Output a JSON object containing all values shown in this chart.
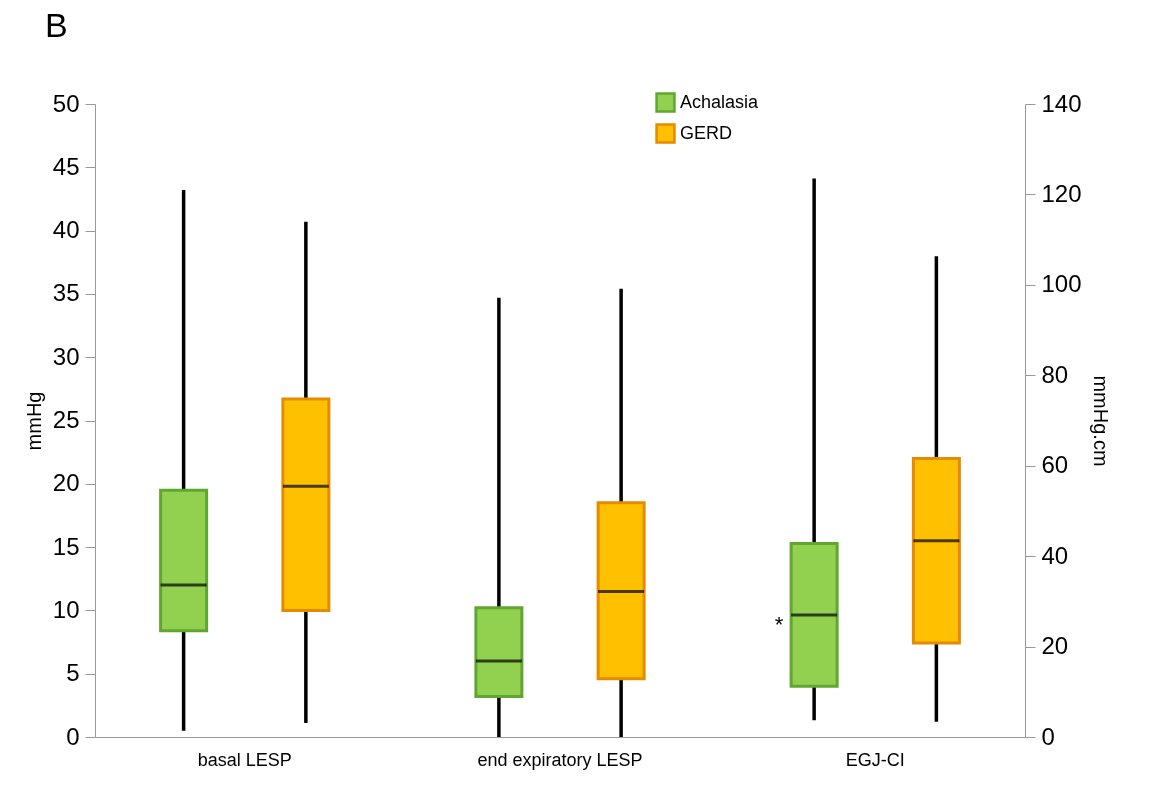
{
  "chart_data": {
    "type": "box",
    "title": "B",
    "ylabel": "mmHg",
    "y2label": "mmHg.cm",
    "categories": [
      "basal LESP",
      "end expiratory LESP",
      "EGJ-CI"
    ],
    "ylim": [
      0,
      50
    ],
    "yticks": [
      0,
      5,
      10,
      15,
      20,
      25,
      30,
      35,
      40,
      45,
      50
    ],
    "y2lim": [
      0,
      140
    ],
    "y2ticks": [
      0,
      20,
      40,
      60,
      80,
      100,
      120,
      140
    ],
    "legend": "top",
    "grid": false,
    "annotations": [
      "*"
    ],
    "series": [
      {
        "name": "Achalasia",
        "color": "#92d050",
        "boxes": [
          {
            "low": 0.5,
            "q1": 8.4,
            "median": 12,
            "q3": 19.5,
            "high": 43.2
          },
          {
            "low": 0,
            "q1": 3.2,
            "median": 6,
            "q3": 10.2,
            "high": 34.7
          },
          null
        ]
      },
      {
        "name": "GERD",
        "color": "#ffc000",
        "boxes": [
          {
            "low": 1.1,
            "q1": 10,
            "median": 19.8,
            "q3": 26.7,
            "high": 40.7
          },
          {
            "low": 0,
            "q1": 4.6,
            "median": 11.5,
            "q3": 18.5,
            "high": 35.4
          },
          null
        ]
      },
      {
        "color": "#92d050",
        "axis": "y2",
        "boxes": [
          null,
          null,
          {
            "low": 3.7,
            "q1": 11.2,
            "median": 27,
            "q3": 42.8,
            "high": 123.5
          }
        ]
      },
      {
        "color": "#ffc000",
        "axis": "y2",
        "boxes": [
          null,
          null,
          {
            "low": 3.4,
            "q1": 20.8,
            "median": 43.4,
            "q3": 61.6,
            "high": 106.3
          }
        ]
      }
    ]
  }
}
